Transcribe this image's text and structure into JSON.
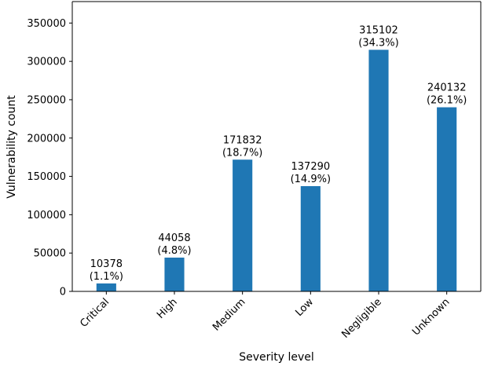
{
  "chart_data": {
    "type": "bar",
    "title": "",
    "xlabel": "Severity level",
    "ylabel": "Vulnerability count",
    "ylim": [
      0,
      378000
    ],
    "yticks": [
      0,
      50000,
      100000,
      150000,
      200000,
      250000,
      300000,
      350000
    ],
    "categories": [
      "Critical",
      "High",
      "Medium",
      "Low",
      "Negligible",
      "Unknown"
    ],
    "values": [
      10378,
      44058,
      171832,
      137290,
      315102,
      240132
    ],
    "percent_labels": [
      "(1.1%)",
      "(4.8%)",
      "(18.7%)",
      "(14.9%)",
      "(34.3%)",
      "(26.1%)"
    ],
    "bar_color": "#1f77b4",
    "grid": false,
    "legend": "none"
  }
}
